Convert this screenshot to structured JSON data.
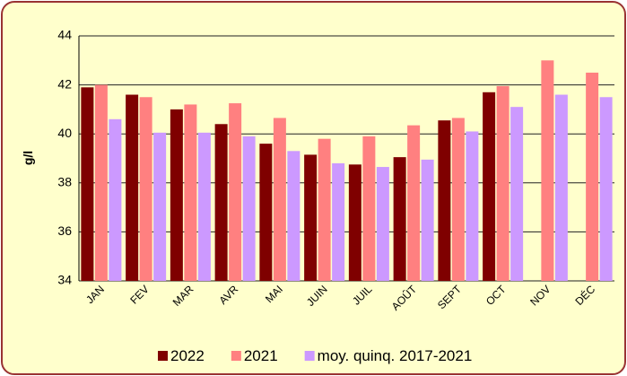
{
  "chart_data": {
    "type": "bar",
    "y_label": "g/l",
    "categories": [
      "JAN",
      "FEV",
      "MAR",
      "AVR",
      "MAI",
      "JUIN",
      "JUIL",
      "AOÛT",
      "SEPT",
      "OCT",
      "NOV",
      "DÉC"
    ],
    "series": [
      {
        "name": "2022",
        "color": "#7f0000",
        "values": [
          41.9,
          41.6,
          41.0,
          40.4,
          39.6,
          39.15,
          38.75,
          39.05,
          40.55,
          41.7,
          null,
          null
        ]
      },
      {
        "name": "2021",
        "color": "#ff8080",
        "values": [
          42.0,
          41.5,
          41.2,
          41.25,
          40.65,
          39.8,
          39.9,
          40.35,
          40.65,
          41.95,
          43.0,
          42.5
        ]
      },
      {
        "name": "moy. quinq. 2017-2021",
        "color": "#cc99ff",
        "values": [
          40.6,
          40.05,
          40.05,
          39.9,
          39.3,
          38.8,
          38.65,
          38.95,
          40.1,
          41.1,
          41.6,
          41.5
        ]
      }
    ],
    "ylim": [
      34,
      44
    ],
    "yticks": [
      34,
      36,
      38,
      40,
      42,
      44
    ],
    "grid": true
  }
}
